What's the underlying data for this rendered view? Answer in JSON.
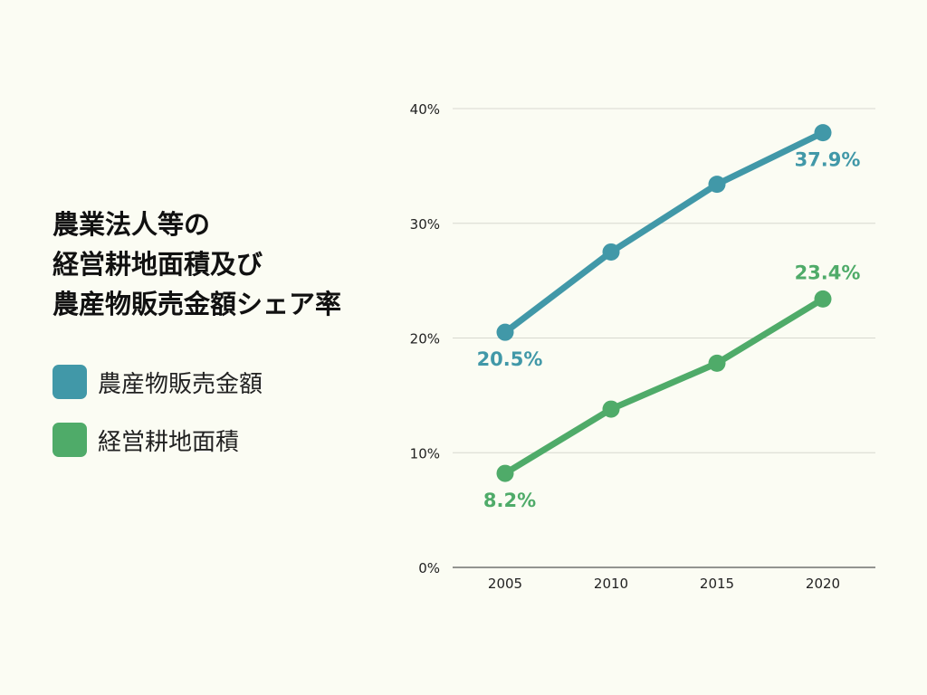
{
  "title_lines": [
    "農業法人等の",
    "経営耕地面積及び",
    "農産物販売金額シェア率"
  ],
  "colors": {
    "background": "#fbfcf3",
    "sales": "#4198a8",
    "land": "#4fab69",
    "grid": "#d8d8d0",
    "axis": "#555555",
    "tick_text": "#222222"
  },
  "chart_data": {
    "type": "line",
    "x": [
      "2005",
      "2010",
      "2015",
      "2020"
    ],
    "ylim": [
      0,
      40
    ],
    "yticks": [
      0,
      10,
      20,
      30,
      40
    ],
    "ytick_labels": [
      "0%",
      "10%",
      "20%",
      "30%",
      "40%"
    ],
    "grid": true,
    "legend_placement": "left",
    "series": [
      {
        "name": "農産物販売金額",
        "color": "#4198a8",
        "values": [
          20.5,
          27.5,
          33.4,
          37.9
        ],
        "data_labels": [
          {
            "index": 0,
            "text": "20.5%",
            "position": "below"
          },
          {
            "index": 3,
            "text": "37.9%",
            "position": "below"
          }
        ]
      },
      {
        "name": "経営耕地面積",
        "color": "#4fab69",
        "values": [
          8.2,
          13.8,
          17.8,
          23.4
        ],
        "data_labels": [
          {
            "index": 0,
            "text": "8.2%",
            "position": "below"
          },
          {
            "index": 3,
            "text": "23.4%",
            "position": "above"
          }
        ]
      }
    ]
  }
}
